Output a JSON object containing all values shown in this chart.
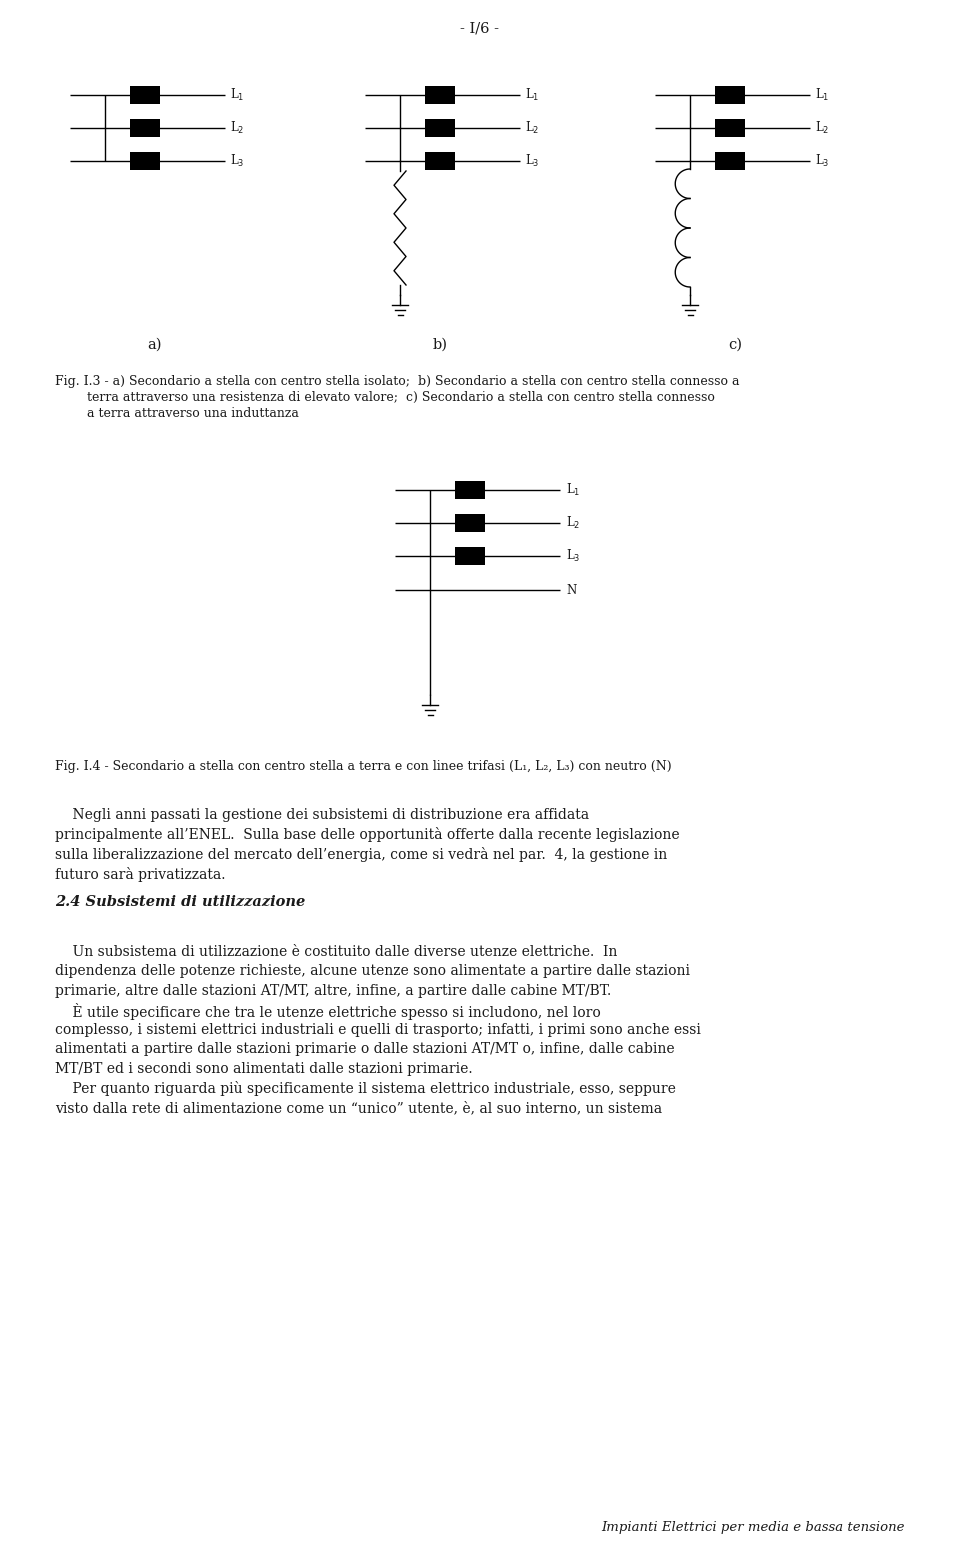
{
  "page_header": "- I/6 -",
  "fig3_caption_lines": [
    "Fig. I.3 - a) Secondario a stella con centro stella isolato;  b) Secondario a stella con centro stella connesso a",
    "        terra attraverso una resistenza di elevato valore;  c) Secondario a stella con centro stella connesso",
    "        a terra attraverso una induttanza"
  ],
  "fig4_caption": "Fig. I.4 - Secondario a stella con centro stella a terra e con linee trifasi (L₁, L₂, L₃) con neutro (N)",
  "section_title": "2.4 Subsistemi di utilizzazione",
  "para1_lines": [
    "    Negli anni passati la gestione dei subsistemi di distribuzione era affidata",
    "principalmente all’ENEL.  Sulla base delle opportunità offerte dalla recente legislazione",
    "sulla liberalizzazione del mercato dell’energia, come si vedrà nel par.  4, la gestione in",
    "futuro sarà privatizzata."
  ],
  "para2_lines": [
    "    Un subsistema di utilizzazione è costituito dalle diverse utenze elettriche.  In",
    "dipendenza delle potenze richieste, alcune utenze sono alimentate a partire dalle stazioni",
    "primarie, altre dalle stazioni AT/MT, altre, infine, a partire dalle cabine MT/BT.",
    "    È utile specificare che tra le utenze elettriche spesso si includono, nel loro",
    "complesso, i sistemi elettrici industriali e quelli di trasporto; infatti, i primi sono anche essi",
    "alimentati a partire dalle stazioni primarie o dalle stazioni AT/MT o, infine, dalle cabine",
    "MT/BT ed i secondi sono alimentati dalle stazioni primarie.",
    "    Per quanto riguarda più specificamente il sistema elettrico industriale, esso, seppure",
    "visto dalla rete di alimentazione come un “unico” utente, è, al suo interno, un sistema"
  ],
  "footer": "Impianti Elettrici per media e bassa tensione",
  "bg_color": "#ffffff",
  "text_color": "#1a1a1a"
}
